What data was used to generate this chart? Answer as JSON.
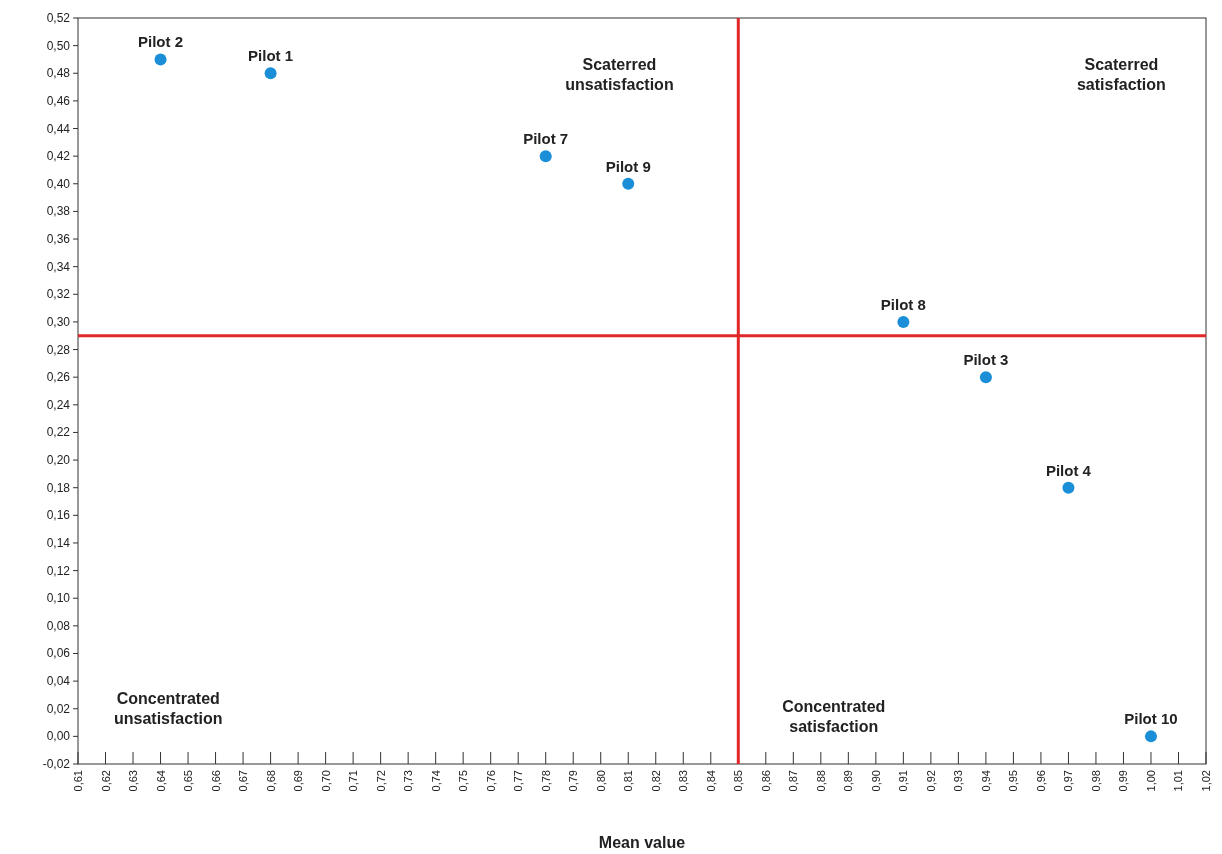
{
  "chart_data": {
    "type": "scatter",
    "xlabel": "Mean value",
    "x": [
      0.64,
      0.68,
      0.78,
      0.81,
      0.91,
      0.94,
      0.97,
      1.0
    ],
    "series": [
      {
        "color": "#1a8fd8",
        "values": [
          0.49,
          0.48,
          0.42,
          0.4,
          0.3,
          0.26,
          0.18,
          0.0
        ]
      }
    ],
    "marker": "circle",
    "grid": false,
    "xlim": [
      0.61,
      1.02
    ],
    "ylim": [
      -0.02,
      0.52
    ],
    "xticks": [
      {
        "value": 0.61,
        "label": "0,61"
      },
      {
        "value": 0.62,
        "label": "0,62"
      },
      {
        "value": 0.63,
        "label": "0,63"
      },
      {
        "value": 0.64,
        "label": "0,64"
      },
      {
        "value": 0.65,
        "label": "0,65"
      },
      {
        "value": 0.66,
        "label": "0,66"
      },
      {
        "value": 0.67,
        "label": "0,67"
      },
      {
        "value": 0.68,
        "label": "0,68"
      },
      {
        "value": 0.69,
        "label": "0,69"
      },
      {
        "value": 0.7,
        "label": "0,70"
      },
      {
        "value": 0.71,
        "label": "0,71"
      },
      {
        "value": 0.72,
        "label": "0,72"
      },
      {
        "value": 0.73,
        "label": "0,73"
      },
      {
        "value": 0.74,
        "label": "0,74"
      },
      {
        "value": 0.75,
        "label": "0,75"
      },
      {
        "value": 0.76,
        "label": "0,76"
      },
      {
        "value": 0.77,
        "label": "0,77"
      },
      {
        "value": 0.78,
        "label": "0,78"
      },
      {
        "value": 0.79,
        "label": "0,79"
      },
      {
        "value": 0.8,
        "label": "0,80"
      },
      {
        "value": 0.81,
        "label": "0,81"
      },
      {
        "value": 0.82,
        "label": "0,82"
      },
      {
        "value": 0.83,
        "label": "0,83"
      },
      {
        "value": 0.84,
        "label": "0,84"
      },
      {
        "value": 0.85,
        "label": "0,85"
      },
      {
        "value": 0.86,
        "label": "0,86"
      },
      {
        "value": 0.87,
        "label": "0,87"
      },
      {
        "value": 0.88,
        "label": "0,88"
      },
      {
        "value": 0.89,
        "label": "0,89"
      },
      {
        "value": 0.9,
        "label": "0,90"
      },
      {
        "value": 0.91,
        "label": "0,91"
      },
      {
        "value": 0.92,
        "label": "0,92"
      },
      {
        "value": 0.93,
        "label": "0,93"
      },
      {
        "value": 0.94,
        "label": "0,94"
      },
      {
        "value": 0.95,
        "label": "0,95"
      },
      {
        "value": 0.96,
        "label": "0,96"
      },
      {
        "value": 0.97,
        "label": "0,97"
      },
      {
        "value": 0.98,
        "label": "0,98"
      },
      {
        "value": 0.99,
        "label": "0,99"
      },
      {
        "value": 1.0,
        "label": "1,00"
      },
      {
        "value": 1.01,
        "label": "1,01"
      },
      {
        "value": 1.02,
        "label": "1,02"
      }
    ],
    "yticks": [
      {
        "value": -0.02,
        "label": "-0,02"
      },
      {
        "value": 0,
        "label": "0,00"
      },
      {
        "value": 0.02,
        "label": "0,02"
      },
      {
        "value": 0.04,
        "label": "0,04"
      },
      {
        "value": 0.06,
        "label": "0,06"
      },
      {
        "value": 0.08,
        "label": "0,08"
      },
      {
        "value": 0.1,
        "label": "0,10"
      },
      {
        "value": 0.12,
        "label": "0,12"
      },
      {
        "value": 0.14,
        "label": "0,14"
      },
      {
        "value": 0.16,
        "label": "0,16"
      },
      {
        "value": 0.18,
        "label": "0,18"
      },
      {
        "value": 0.2,
        "label": "0,20"
      },
      {
        "value": 0.22,
        "label": "0,22"
      },
      {
        "value": 0.24,
        "label": "0,24"
      },
      {
        "value": 0.26,
        "label": "0,26"
      },
      {
        "value": 0.28,
        "label": "0,28"
      },
      {
        "value": 0.3,
        "label": "0,30"
      },
      {
        "value": 0.32,
        "label": "0,32"
      },
      {
        "value": 0.34,
        "label": "0,34"
      },
      {
        "value": 0.36,
        "label": "0,36"
      },
      {
        "value": 0.38,
        "label": "0,38"
      },
      {
        "value": 0.4,
        "label": "0,40"
      },
      {
        "value": 0.42,
        "label": "0,42"
      },
      {
        "value": 0.44,
        "label": "0,44"
      },
      {
        "value": 0.46,
        "label": "0,46"
      },
      {
        "value": 0.48,
        "label": "0,48"
      },
      {
        "value": 0.5,
        "label": "0,50"
      },
      {
        "value": 0.52,
        "label": "0,52"
      }
    ],
    "ref_lines": [
      {
        "axis": "x",
        "value": 0.85,
        "color": "#e02626"
      },
      {
        "axis": "y",
        "value": 0.29,
        "color": "#e02626"
      }
    ],
    "annotations": [
      {
        "text": "Pilot 2",
        "x": 0.64,
        "y": 0.49
      },
      {
        "text": "Pilot 1",
        "x": 0.68,
        "y": 0.48
      },
      {
        "text": "Pilot 7",
        "x": 0.78,
        "y": 0.42
      },
      {
        "text": "Pilot 9",
        "x": 0.81,
        "y": 0.4
      },
      {
        "text": "Pilot 8",
        "x": 0.91,
        "y": 0.3
      },
      {
        "text": "Pilot 3",
        "x": 0.94,
        "y": 0.26
      },
      {
        "text": "Pilot 4",
        "x": 0.97,
        "y": 0.18
      },
      {
        "text": "Pilot 10",
        "x": 1.0,
        "y": 0.0
      },
      "Scaterred\nunsatisfaction",
      "Scaterred\nsatisfaction",
      "Concentrated\nunsatisfaction",
      "Concentrated\nsatisfaction"
    ]
  }
}
